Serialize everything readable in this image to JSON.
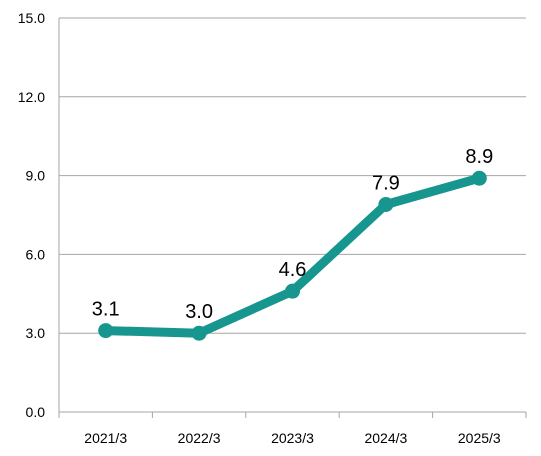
{
  "chart_data": {
    "type": "line",
    "categories": [
      "2021/3",
      "2022/3",
      "2023/3",
      "2024/3",
      "2025/3"
    ],
    "values": [
      3.1,
      3.0,
      4.6,
      7.9,
      8.9
    ],
    "data_labels": [
      "3.1",
      "3.0",
      "4.6",
      "7.9",
      "8.9"
    ],
    "y_ticks": [
      "0.0",
      "3.0",
      "6.0",
      "9.0",
      "12.0",
      "15.0"
    ],
    "ylim": [
      0,
      15
    ],
    "grid": true,
    "legend": "none",
    "line_color": "#16968f",
    "gridline_color": "#a6a6a6"
  }
}
